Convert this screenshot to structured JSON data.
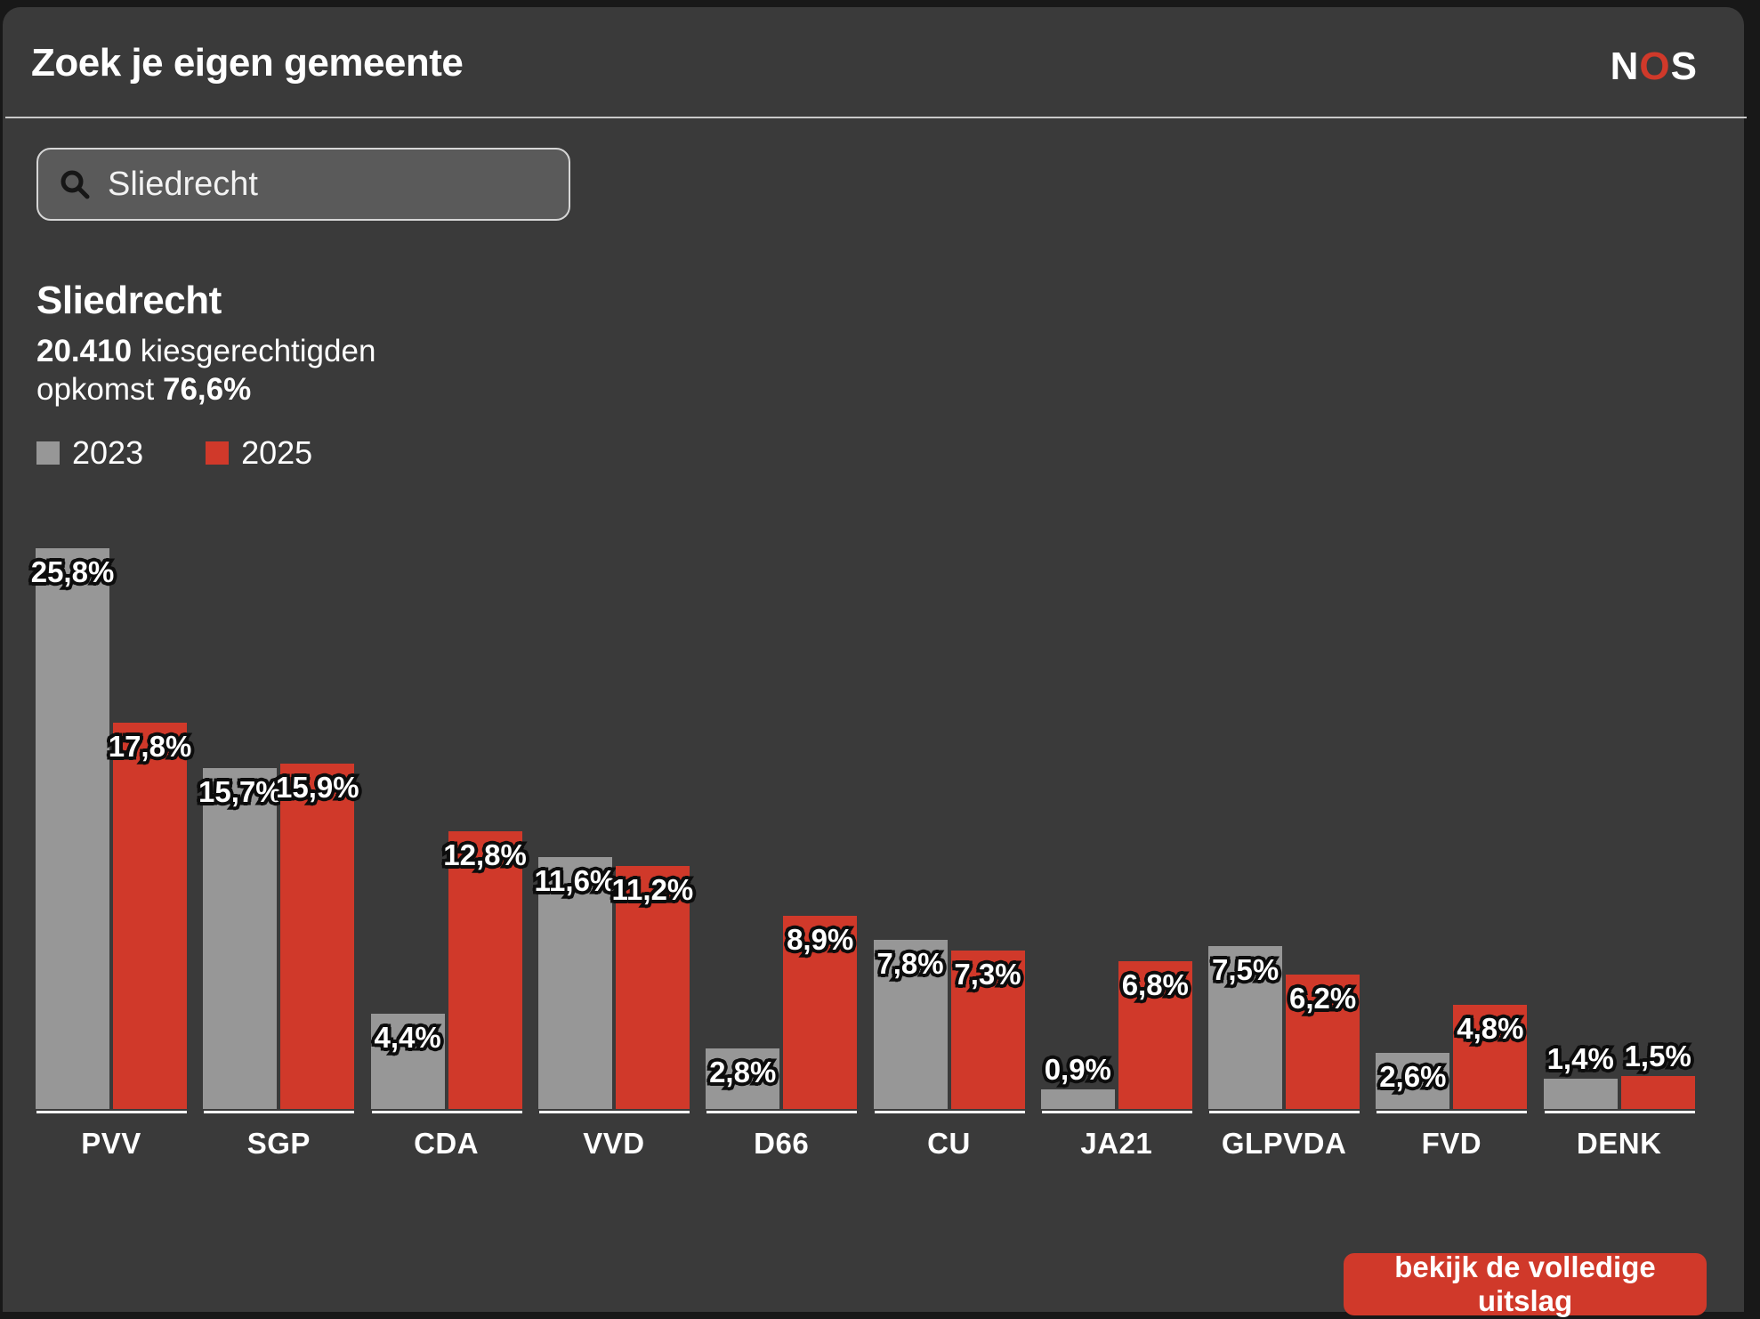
{
  "header": {
    "title": "Zoek je eigen gemeente",
    "logo": {
      "n": "N",
      "o": "O",
      "s": "S"
    }
  },
  "search": {
    "value": "Sliedrecht"
  },
  "municipality": {
    "name": "Sliedrecht",
    "voters_value": "20.410",
    "voters_label": " kiesgerechtigden",
    "turnout_label": "opkomst ",
    "turnout_value": "76,6%"
  },
  "legend": [
    {
      "label": "2023",
      "color": "#979797"
    },
    {
      "label": "2025",
      "color": "#d0392a"
    }
  ],
  "chart_data": {
    "type": "bar",
    "title": "",
    "categories": [
      "PVV",
      "SGP",
      "CDA",
      "VVD",
      "D66",
      "CU",
      "JA21",
      "GLPVDA",
      "FVD",
      "DENK"
    ],
    "series": [
      {
        "name": "2023",
        "color": "#979797",
        "values": [
          25.8,
          15.7,
          4.4,
          11.6,
          2.8,
          7.8,
          0.9,
          7.5,
          2.6,
          1.4
        ]
      },
      {
        "name": "2025",
        "color": "#d0392a",
        "values": [
          17.8,
          15.9,
          12.8,
          11.2,
          8.9,
          7.3,
          6.8,
          6.2,
          4.8,
          1.5
        ]
      }
    ],
    "value_suffix": "%",
    "decimal_separator": ",",
    "xlabel": "",
    "ylabel": "",
    "ylim": [
      0,
      26
    ],
    "grid": false,
    "legend_position": "top-left",
    "value_labels": "shown on every bar, white bold with black outline"
  },
  "button": {
    "label": "bekijk de volledige uitslag"
  },
  "colors": {
    "page_background": "#181818",
    "card_background": "#3a3a3a",
    "bar_2023": "#979797",
    "bar_2025": "#d0392a",
    "accent_red": "#d0392a",
    "text": "#ffffff",
    "divider": "#c9c9c9",
    "search_fill": "#5a5a5a",
    "search_border": "#d6d6d6"
  }
}
